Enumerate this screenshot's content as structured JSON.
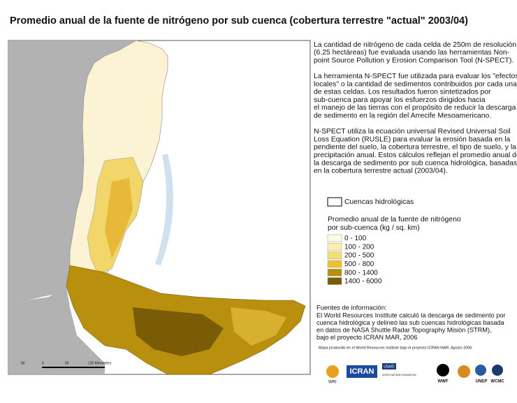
{
  "header": {
    "title": "Promedio anual de la fuente de nitrógeno por sub cuenca (cobertura terrestre \"actual\" 2003/04)"
  },
  "description": {
    "paragraphs": [
      [
        "La cantidad de nitrógeno de cada celda de 250m de resolución",
        "(6.25 hectáreas) fue evaluada usando las herramientas Non-",
        "point Source Pollution y Erosion Comparison Tool (N-SPECT)."
      ],
      [
        "La herramienta N-SPECT fue utilizada para evaluar los \"efectos",
        "locales\" o la cantidad de sedimentos contribuidos por cada una",
        "de estas celdas. Los resultados fueron sintetizados por",
        "sub-cuenca para apoyar los esfuerzos dirigidos hacia",
        "el manejo de las tierras con el propósito de reducir la descarga",
        "de sedimento en la región del Arrecife Mesoamericano."
      ],
      [
        "N-SPECT utiliza la ecuación universal Revised Universal Soil",
        "Loss Equation (RUSLE) para evaluar la erosión basada en la",
        "pendiente del suelo, la cobertura terrestre, el tipo de suelo, y la",
        "precipitación anual. Estos cálculos reflejan el promedio anual de",
        "la descarga de sedimento por sub cuenca hidrológica, basadas",
        "en la cobertura terrestre actual (2003/04)."
      ]
    ]
  },
  "legend": {
    "boundary_label": "Cuencas hidrológicas",
    "title": [
      "Promedio anual de la fuente de nitrógeno",
      "por sub-cuenca (kg / sq. km)"
    ],
    "classes": [
      {
        "label": "0 - 100",
        "color": "#fffbe0"
      },
      {
        "label": "100 - 200",
        "color": "#fdefb0"
      },
      {
        "label": "200 - 500",
        "color": "#f8de70"
      },
      {
        "label": "500 - 800",
        "color": "#eec22c"
      },
      {
        "label": "800 - 1400",
        "color": "#b8900e"
      },
      {
        "label": "1400 - 6000",
        "color": "#7a5c06"
      }
    ]
  },
  "sources": {
    "title": "Fuentes de información:",
    "lines": [
      "El World Resources Institute calculó la descarga de sedimento por",
      "cuenca hidrológica y delineó las sub cuencas hidrológicas basada",
      "en datos de NASA Shuttle Radar Topography Misión (STRM),",
      "bajo el proyecto ICRAN MAR, 2006"
    ],
    "credit": "Mapa producido en el World Resources Institute bajo el proyecto ICRAN MAR, Agosto 2006."
  },
  "scale_bar": {
    "labels": [
      "60",
      "0",
      "60",
      "120 Kilometers"
    ]
  },
  "logos": [
    "WRI",
    "ICRAN",
    "USAID",
    "UNITED NATIONS FOUNDATION",
    "WWF",
    "UNEP",
    "WCMC"
  ]
}
